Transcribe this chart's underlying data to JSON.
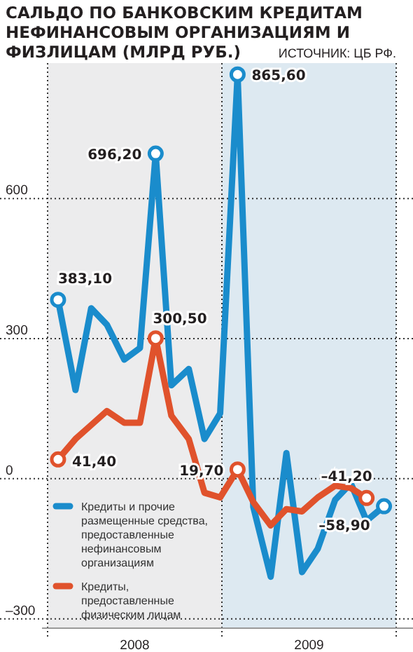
{
  "chart_data": {
    "type": "line",
    "title": "САЛЬДО ПО БАНКОВСКИМ КРЕДИТАМ НЕФИНАНСОВЫМ ОРГАНИЗАЦИЯМ И ФИЗЛИЦАМ (МЛРД РУБ.)",
    "annotations": [
      "ИСТОЧНИК: ЦБ РФ."
    ],
    "x": [
      2008.06,
      2008.16,
      2008.25,
      2008.34,
      2008.44,
      2008.53,
      2008.62,
      2008.71,
      2008.81,
      2008.9,
      2008.99,
      2009.09,
      2009.18,
      2009.28,
      2009.37,
      2009.46,
      2009.55,
      2009.65,
      2009.74,
      2009.83,
      2009.93
    ],
    "xlim": [
      2008,
      2010
    ],
    "xticks": [
      {
        "value": 2008.5,
        "label": "2008"
      },
      {
        "value": 2009.5,
        "label": "2009"
      }
    ],
    "ylim": [
      -320,
      890
    ],
    "yticks": [
      {
        "value": -300,
        "label": "–300"
      },
      0,
      300,
      600
    ],
    "grid": "y",
    "legend": "bottom left",
    "bands": [
      {
        "axis": "x",
        "from": 2008,
        "to": 2009,
        "color": "#ececed"
      },
      {
        "axis": "x",
        "from": 2009,
        "to": 2010,
        "color": "#dde9f1"
      }
    ],
    "series": [
      {
        "name": "Кредиты и прочие размещенные средства, предоставленные нефинансовым организациям",
        "color": "#1a8ccc",
        "values": [
          383.1,
          190,
          365,
          330,
          255,
          280,
          696.2,
          200,
          235,
          85,
          140,
          865.6,
          -60,
          -210,
          55,
          -200,
          -150,
          -45,
          -10,
          -90,
          -58.9
        ],
        "value_labels": [
          "383,10",
          null,
          null,
          null,
          null,
          null,
          "696,20",
          null,
          null,
          null,
          null,
          "865,60",
          null,
          null,
          null,
          null,
          null,
          null,
          null,
          null,
          "–58,90"
        ]
      },
      {
        "name": "Кредиты, предоставленные физическим лицам",
        "color": "#e0522c",
        "values": [
          41.4,
          85,
          115,
          145,
          120,
          120,
          300.5,
          135,
          85,
          -30,
          -40,
          19.7,
          -50,
          -100,
          -65,
          -70,
          -40,
          -15,
          -20,
          -41.2,
          null
        ],
        "value_labels": [
          "41,40",
          null,
          null,
          null,
          null,
          null,
          "300,50",
          null,
          null,
          null,
          null,
          "19,70",
          null,
          null,
          null,
          null,
          null,
          null,
          null,
          "–41,20",
          null
        ]
      }
    ]
  }
}
